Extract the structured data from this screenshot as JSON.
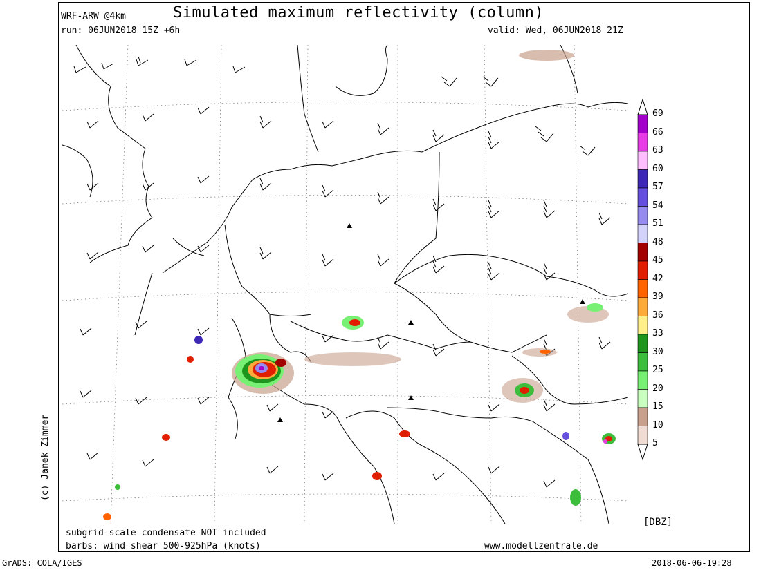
{
  "header": {
    "model": "WRF-ARW @4km",
    "title": "Simulated maximum reflectivity (column)",
    "run": "run: 06JUN2018 15Z +6h",
    "valid": "valid: Wed, 06JUN2018 21Z"
  },
  "footer": {
    "note_condensate": "subgrid-scale condensate NOT included",
    "note_barbs": "barbs: wind shear 500-925hPa (knots)",
    "website": "www.modellzentrale.de",
    "software": "GrADS: COLA/IGES",
    "timestamp": "2018-06-06-19:28"
  },
  "copyright": "(c) Janek Zimmer",
  "colorbar": {
    "unit": "[DBZ]",
    "levels": [
      {
        "value": "69",
        "color": "#a000c8"
      },
      {
        "value": "66",
        "color": "#e63ce6"
      },
      {
        "value": "63",
        "color": "#ffbeff"
      },
      {
        "value": "60",
        "color": "#3c28b4"
      },
      {
        "value": "57",
        "color": "#6450dc"
      },
      {
        "value": "54",
        "color": "#968cf0"
      },
      {
        "value": "51",
        "color": "#d2d2fa"
      },
      {
        "value": "48",
        "color": "#a00000"
      },
      {
        "value": "45",
        "color": "#e11e00"
      },
      {
        "value": "42",
        "color": "#ff6400"
      },
      {
        "value": "39",
        "color": "#ffaa3c"
      },
      {
        "value": "36",
        "color": "#fff08c"
      },
      {
        "value": "33",
        "color": "#1e961e"
      },
      {
        "value": "30",
        "color": "#3cbe3c"
      },
      {
        "value": "25",
        "color": "#78f073"
      },
      {
        "value": "20",
        "color": "#c8ffbe"
      },
      {
        "value": "15",
        "color": "#c8a08c"
      },
      {
        "value": "10",
        "color": "#f0dcd2"
      },
      {
        "value": "5",
        "color": "#ffffff"
      }
    ]
  }
}
